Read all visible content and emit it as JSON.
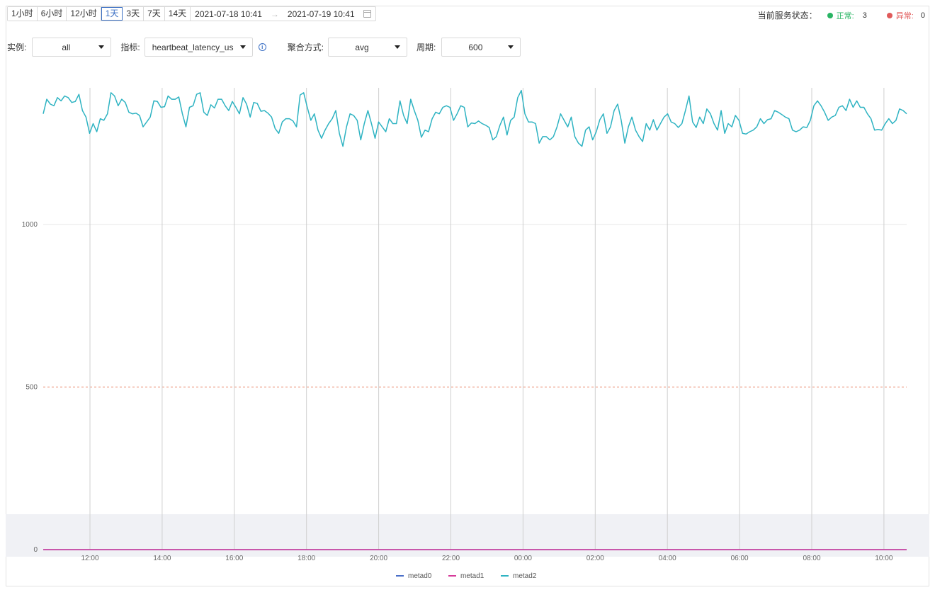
{
  "toolbar": {
    "time_buttons": [
      {
        "label": "1小时",
        "active": false
      },
      {
        "label": "6小时",
        "active": false
      },
      {
        "label": "12小时",
        "active": false
      },
      {
        "label": "1天",
        "active": true
      },
      {
        "label": "3天",
        "active": false
      },
      {
        "label": "7天",
        "active": false
      },
      {
        "label": "14天",
        "active": false
      }
    ],
    "range_start": "2021-07-18 10:41",
    "range_arrow": "→",
    "range_end": "2021-07-19 10:41",
    "calendar_icon": "calendar-icon"
  },
  "service_status": {
    "label": "当前服务状态：",
    "normal_label": "正常:",
    "normal_count": "3",
    "normal_color": "#28b463",
    "abnormal_label": "异常:",
    "abnormal_count": "0",
    "abnormal_color": "#e05a5a"
  },
  "filters": {
    "instance_label": "实例:",
    "instance_value": "all",
    "metric_label": "指标:",
    "metric_value": "heartbeat_latency_us",
    "metric_info_icon": "info-icon",
    "agg_label": "聚合方式:",
    "agg_value": "avg",
    "period_label": "周期:",
    "period_value": "600"
  },
  "chart_data": {
    "type": "line",
    "y_ticks": [
      0,
      500,
      1000
    ],
    "y_range": [
      0,
      1420
    ],
    "x_ticks": [
      "12:00",
      "14:00",
      "16:00",
      "18:00",
      "20:00",
      "22:00",
      "00:00",
      "02:00",
      "04:00",
      "06:00",
      "08:00",
      "10:00"
    ],
    "threshold": {
      "value": 500,
      "color": "#e8856a",
      "style": "dashed"
    },
    "series": [
      {
        "name": "metad0",
        "color": "#4a6fc8",
        "values": [
          0,
          0
        ]
      },
      {
        "name": "metad1",
        "color": "#d63a9a",
        "values": [
          0,
          0
        ]
      },
      {
        "name": "metad2",
        "color": "#2eb3c2",
        "values": [
          1340,
          1385,
          1370,
          1365,
          1390,
          1380,
          1395,
          1390,
          1375,
          1378,
          1400,
          1350,
          1330,
          1280,
          1310,
          1285,
          1325,
          1320,
          1340,
          1405,
          1395,
          1365,
          1385,
          1375,
          1345,
          1340,
          1342,
          1335,
          1300,
          1315,
          1330,
          1380,
          1378,
          1360,
          1362,
          1395,
          1385,
          1385,
          1392,
          1340,
          1300,
          1360,
          1365,
          1400,
          1405,
          1345,
          1335,
          1368,
          1358,
          1385,
          1385,
          1365,
          1350,
          1378,
          1360,
          1340,
          1390,
          1370,
          1330,
          1375,
          1372,
          1348,
          1350,
          1342,
          1330,
          1295,
          1280,
          1315,
          1325,
          1325,
          1318,
          1300,
          1398,
          1405,
          1360,
          1320,
          1340,
          1290,
          1265,
          1290,
          1310,
          1325,
          1350,
          1280,
          1240,
          1300,
          1340,
          1335,
          1320,
          1260,
          1310,
          1350,
          1310,
          1265,
          1315,
          1300,
          1285,
          1325,
          1310,
          1310,
          1380,
          1335,
          1310,
          1385,
          1350,
          1320,
          1268,
          1290,
          1285,
          1325,
          1345,
          1340,
          1360,
          1365,
          1360,
          1320,
          1340,
          1365,
          1360,
          1300,
          1312,
          1310,
          1318,
          1310,
          1305,
          1298,
          1260,
          1270,
          1305,
          1330,
          1275,
          1320,
          1330,
          1390,
          1412,
          1340,
          1315,
          1315,
          1310,
          1250,
          1270,
          1270,
          1260,
          1270,
          1300,
          1340,
          1320,
          1300,
          1330,
          1270,
          1250,
          1240,
          1290,
          1300,
          1260,
          1285,
          1322,
          1340,
          1280,
          1300,
          1350,
          1370,
          1320,
          1250,
          1300,
          1330,
          1290,
          1270,
          1255,
          1310,
          1290,
          1322,
          1290,
          1310,
          1330,
          1340,
          1315,
          1310,
          1298,
          1310,
          1350,
          1395,
          1315,
          1298,
          1330,
          1310,
          1355,
          1340,
          1310,
          1290,
          1350,
          1280,
          1310,
          1300,
          1335,
          1320,
          1280,
          1278,
          1285,
          1290,
          1300,
          1325,
          1310,
          1322,
          1325,
          1350,
          1345,
          1338,
          1330,
          1325,
          1290,
          1285,
          1290,
          1300,
          1298,
          1320,
          1365,
          1380,
          1365,
          1345,
          1320,
          1330,
          1335,
          1360,
          1365,
          1350,
          1385,
          1360,
          1380,
          1360,
          1360,
          1340,
          1325,
          1290,
          1292,
          1290,
          1310,
          1325,
          1310,
          1320,
          1355,
          1350,
          1340
        ]
      }
    ],
    "legend": [
      "metad0",
      "metad1",
      "metad2"
    ],
    "legend_placement": "bottom-center"
  }
}
